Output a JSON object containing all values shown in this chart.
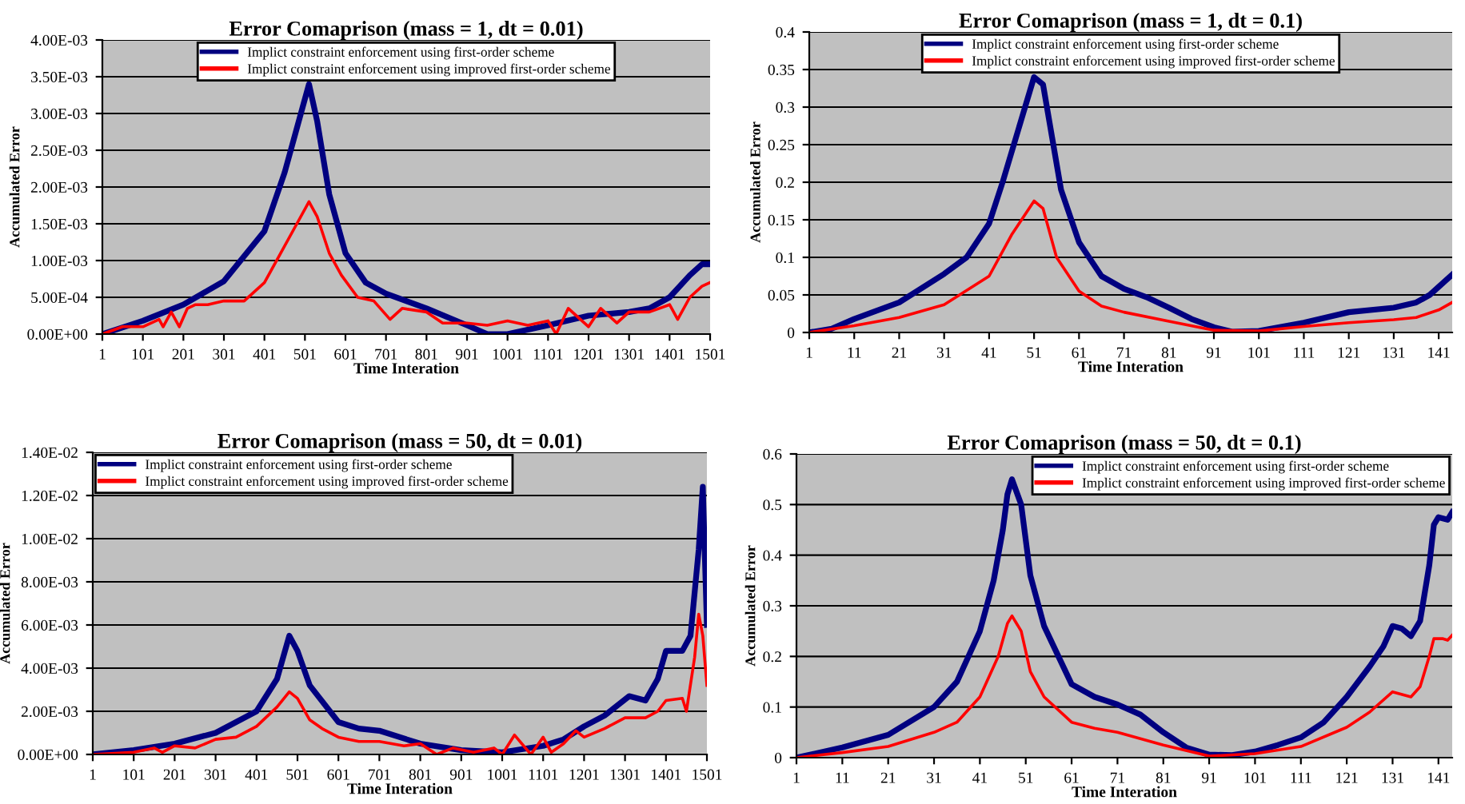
{
  "chart_data": [
    {
      "type": "line",
      "title": "Error Comaprison (mass = 1, dt = 0.01)",
      "xlabel": "Time Interation",
      "ylabel": "Accumulated Error",
      "xlim": [
        1,
        1501
      ],
      "xticks": [
        1,
        101,
        201,
        301,
        401,
        501,
        601,
        701,
        801,
        901,
        1001,
        1101,
        1201,
        1301,
        1401,
        1501
      ],
      "ylim": [
        0,
        0.004
      ],
      "yticks": [
        {
          "value": 0,
          "label": "0.00E+00"
        },
        {
          "value": 0.0005,
          "label": "5.00E-04"
        },
        {
          "value": 0.001,
          "label": "1.00E-03"
        },
        {
          "value": 0.0015,
          "label": "1.50E-03"
        },
        {
          "value": 0.002,
          "label": "2.00E-03"
        },
        {
          "value": 0.0025,
          "label": "2.50E-03"
        },
        {
          "value": 0.003,
          "label": "3.00E-03"
        },
        {
          "value": 0.0035,
          "label": "3.50E-03"
        },
        {
          "value": 0.004,
          "label": "4.00E-03"
        }
      ],
      "grid": "y",
      "legend": "top",
      "marker": "none",
      "line_style": "solid",
      "series": [
        {
          "name": "Implict constraint enforcement using first-order scheme",
          "color": "#000080",
          "x": [
            1,
            101,
            201,
            301,
            401,
            451,
            491,
            511,
            531,
            561,
            601,
            651,
            701,
            801,
            901,
            951,
            1001,
            1101,
            1201,
            1301,
            1351,
            1401,
            1451,
            1481,
            1501
          ],
          "values": [
            0,
            0.00018,
            0.0004,
            0.00072,
            0.0014,
            0.0022,
            0.003,
            0.0034,
            0.0029,
            0.0019,
            0.0011,
            0.0007,
            0.00055,
            0.00035,
            0.00012,
            0,
            0,
            0.00012,
            0.00025,
            0.0003,
            0.00035,
            0.0005,
            0.0008,
            0.00095,
            0.00095
          ]
        },
        {
          "name": "Implict constraint enforcement using improved first-order scheme",
          "color": "#ff0000",
          "x": [
            1,
            51,
            101,
            141,
            151,
            171,
            191,
            211,
            231,
            261,
            301,
            351,
            401,
            441,
            481,
            511,
            531,
            561,
            591,
            631,
            671,
            711,
            741,
            801,
            841,
            901,
            951,
            1001,
            1051,
            1101,
            1121,
            1151,
            1201,
            1231,
            1271,
            1301,
            1351,
            1401,
            1421,
            1451,
            1481,
            1501
          ],
          "values": [
            0,
            0.0001,
            0.0001,
            0.0002,
            0.0001,
            0.0003,
            0.0001,
            0.00035,
            0.0004,
            0.0004,
            0.00045,
            0.00045,
            0.0007,
            0.0011,
            0.0015,
            0.0018,
            0.0016,
            0.0011,
            0.0008,
            0.0005,
            0.00045,
            0.0002,
            0.00035,
            0.0003,
            0.00015,
            0.00015,
            0.00012,
            0.00018,
            0.00012,
            0.00018,
            0,
            0.00035,
            0.0001,
            0.00035,
            0.00015,
            0.0003,
            0.0003,
            0.0004,
            0.0002,
            0.0005,
            0.00065,
            0.0007
          ]
        }
      ]
    },
    {
      "type": "line",
      "title": "Error Comaprison (mass = 1, dt = 0.1)",
      "xlabel": "Time Interation",
      "ylabel": "Accumulated Error",
      "xlim": [
        1,
        144
      ],
      "xticks": [
        1,
        11,
        21,
        31,
        41,
        51,
        61,
        71,
        81,
        91,
        101,
        111,
        121,
        131,
        141
      ],
      "ylim": [
        0,
        0.4
      ],
      "yticks": [
        0,
        0.05,
        0.1,
        0.15,
        0.2,
        0.25,
        0.3,
        0.35,
        0.4
      ],
      "grid": "y",
      "legend": "top",
      "marker": "none",
      "line_style": "solid",
      "series": [
        {
          "name": "Implict constraint enforcement using first-order scheme",
          "color": "#000080",
          "x": [
            1,
            6,
            11,
            21,
            31,
            36,
            41,
            44,
            48,
            51,
            53,
            55,
            57,
            61,
            66,
            71,
            76,
            81,
            86,
            91,
            95,
            101,
            111,
            121,
            131,
            136,
            139,
            144
          ],
          "values": [
            0,
            0.005,
            0.018,
            0.04,
            0.078,
            0.1,
            0.145,
            0.2,
            0.28,
            0.34,
            0.33,
            0.26,
            0.19,
            0.12,
            0.075,
            0.058,
            0.047,
            0.033,
            0.018,
            0.007,
            0.001,
            0.002,
            0.013,
            0.027,
            0.033,
            0.04,
            0.05,
            0.077
          ]
        },
        {
          "name": "Implict constraint enforcement using improved first-order scheme",
          "color": "#ff0000",
          "x": [
            1,
            11,
            21,
            31,
            41,
            46,
            51,
            53,
            56,
            61,
            66,
            71,
            81,
            91,
            101,
            111,
            121,
            131,
            136,
            141,
            144
          ],
          "values": [
            0,
            0.009,
            0.02,
            0.037,
            0.075,
            0.13,
            0.175,
            0.165,
            0.1,
            0.055,
            0.035,
            0.027,
            0.015,
            0.003,
            0.002,
            0.008,
            0.013,
            0.017,
            0.02,
            0.03,
            0.04
          ]
        }
      ]
    },
    {
      "type": "line",
      "title": "Error Comaprison (mass = 50, dt = 0.01)",
      "xlabel": "Time Interation",
      "ylabel": "Accumulated Error",
      "xlim": [
        1,
        1501
      ],
      "xticks": [
        1,
        101,
        201,
        301,
        401,
        501,
        601,
        701,
        801,
        901,
        1001,
        1101,
        1201,
        1301,
        1401,
        1501
      ],
      "ylim": [
        0,
        0.014
      ],
      "yticks": [
        {
          "value": 0,
          "label": "0.00E+00"
        },
        {
          "value": 0.002,
          "label": "2.00E-03"
        },
        {
          "value": 0.004,
          "label": "4.00E-03"
        },
        {
          "value": 0.006,
          "label": "6.00E-03"
        },
        {
          "value": 0.008,
          "label": "8.00E-03"
        },
        {
          "value": 0.01,
          "label": "1.00E-02"
        },
        {
          "value": 0.012,
          "label": "1.20E-02"
        },
        {
          "value": 0.014,
          "label": "1.40E-02"
        }
      ],
      "grid": "y",
      "legend": "top left",
      "marker": "none",
      "line_style": "solid",
      "series": [
        {
          "name": "Implict constraint enforcement using first-order scheme",
          "color": "#000080",
          "x": [
            1,
            101,
            201,
            301,
            401,
            451,
            481,
            501,
            531,
            601,
            651,
            701,
            801,
            901,
            1001,
            1101,
            1151,
            1201,
            1251,
            1311,
            1351,
            1381,
            1401,
            1441,
            1461,
            1481,
            1491,
            1501
          ],
          "values": [
            0,
            0.0002,
            0.0005,
            0.001,
            0.002,
            0.0035,
            0.0055,
            0.0048,
            0.0032,
            0.0015,
            0.0012,
            0.0011,
            0.0005,
            0.0002,
            0.0001,
            0.0004,
            0.0007,
            0.0013,
            0.0018,
            0.0027,
            0.0025,
            0.0035,
            0.0048,
            0.0048,
            0.0055,
            0.0095,
            0.0124,
            0.006
          ]
        },
        {
          "name": "Implict constraint enforcement using improved first-order scheme",
          "color": "#ff0000",
          "x": [
            1,
            101,
            151,
            171,
            201,
            251,
            301,
            351,
            401,
            451,
            481,
            501,
            531,
            561,
            601,
            651,
            701,
            761,
            801,
            841,
            881,
            931,
            981,
            1001,
            1031,
            1071,
            1101,
            1121,
            1151,
            1181,
            1201,
            1251,
            1301,
            1351,
            1381,
            1401,
            1441,
            1451,
            1471,
            1481,
            1491,
            1501
          ],
          "values": [
            0,
            0.0001,
            0.0003,
            0.0001,
            0.0004,
            0.0003,
            0.0007,
            0.0008,
            0.0013,
            0.0022,
            0.0029,
            0.0026,
            0.0016,
            0.0012,
            0.0008,
            0.0006,
            0.0006,
            0.0004,
            0.0005,
            0,
            0.0003,
            0.0001,
            0.0003,
            0,
            0.0009,
            0,
            0.0008,
            0.0001,
            0.0005,
            0.0011,
            0.0008,
            0.0012,
            0.0017,
            0.0017,
            0.002,
            0.0025,
            0.0026,
            0.002,
            0.0045,
            0.0065,
            0.0055,
            0.0032
          ]
        }
      ]
    },
    {
      "type": "line",
      "title": "Error Comaprison (mass = 50, dt = 0.1)",
      "xlabel": "Time Interation",
      "ylabel": "Accumulated Error",
      "xlim": [
        1,
        144
      ],
      "xticks": [
        1,
        11,
        21,
        31,
        41,
        51,
        61,
        71,
        81,
        91,
        101,
        111,
        121,
        131,
        141
      ],
      "ylim": [
        0,
        0.6
      ],
      "yticks": [
        0,
        0.1,
        0.2,
        0.3,
        0.4,
        0.5,
        0.6
      ],
      "grid": "y",
      "legend": "top right",
      "marker": "none",
      "line_style": "solid",
      "series": [
        {
          "name": "Implict constraint enforcement using first-order scheme",
          "color": "#000080",
          "x": [
            1,
            11,
            21,
            31,
            36,
            41,
            44,
            46,
            47,
            48,
            50,
            52,
            55,
            61,
            66,
            71,
            76,
            81,
            86,
            91,
            96,
            101,
            106,
            111,
            116,
            121,
            126,
            129,
            131,
            133,
            135,
            137,
            139,
            140,
            141,
            143,
            144
          ],
          "values": [
            0,
            0.02,
            0.045,
            0.1,
            0.15,
            0.25,
            0.35,
            0.45,
            0.52,
            0.55,
            0.5,
            0.36,
            0.26,
            0.145,
            0.12,
            0.105,
            0.085,
            0.05,
            0.02,
            0.006,
            0.005,
            0.012,
            0.025,
            0.04,
            0.07,
            0.12,
            0.18,
            0.22,
            0.26,
            0.255,
            0.24,
            0.27,
            0.38,
            0.46,
            0.475,
            0.47,
            0.485
          ]
        },
        {
          "name": "Implict constraint enforcement using improved first-order scheme",
          "color": "#ff0000",
          "x": [
            1,
            11,
            21,
            31,
            36,
            41,
            45,
            47,
            48,
            50,
            52,
            55,
            61,
            66,
            71,
            81,
            91,
            101,
            111,
            121,
            126,
            131,
            135,
            137,
            139,
            140,
            142,
            143,
            144
          ],
          "values": [
            0,
            0.01,
            0.022,
            0.05,
            0.07,
            0.12,
            0.2,
            0.265,
            0.28,
            0.25,
            0.17,
            0.12,
            0.07,
            0.058,
            0.05,
            0.025,
            0.003,
            0.008,
            0.022,
            0.06,
            0.09,
            0.13,
            0.12,
            0.14,
            0.2,
            0.235,
            0.235,
            0.232,
            0.242
          ]
        }
      ]
    }
  ]
}
